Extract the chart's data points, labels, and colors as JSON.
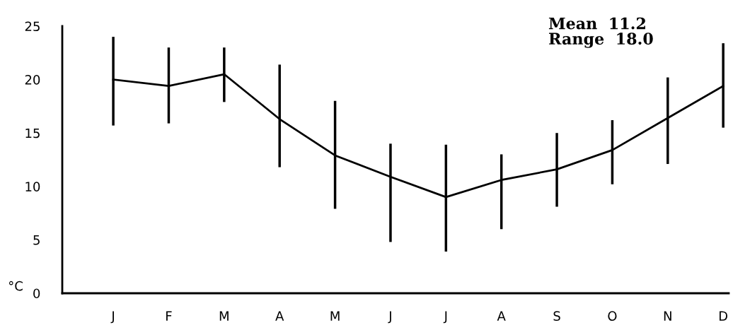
{
  "chart_data": {
    "type": "line",
    "ylabel": "°C",
    "categories": [
      "J",
      "F",
      "M",
      "A",
      "M",
      "J",
      "J",
      "A",
      "S",
      "O",
      "N",
      "D"
    ],
    "series": [
      {
        "color": "#000000",
        "values": [
          20.0,
          19.4,
          20.5,
          16.3,
          12.9,
          10.9,
          9.0,
          10.6,
          11.6,
          13.4,
          16.4,
          19.4
        ],
        "errors": [
          [
            15.7,
            24.0
          ],
          [
            15.9,
            23.0
          ],
          [
            17.9,
            23.0
          ],
          [
            11.8,
            21.4
          ],
          [
            7.9,
            18.0
          ],
          [
            4.8,
            14.0
          ],
          [
            3.9,
            13.9
          ],
          [
            6.0,
            13.0
          ],
          [
            8.1,
            15.0
          ],
          [
            10.2,
            16.2
          ],
          [
            12.1,
            20.2
          ],
          [
            15.5,
            23.4
          ]
        ]
      }
    ],
    "ylim": [
      0,
      25
    ],
    "yticks": [
      0,
      5,
      10,
      15,
      20,
      25
    ],
    "annotations": [
      "Mean  11.2",
      "Range  18.0"
    ],
    "marker": "none",
    "line_style": "solid"
  }
}
